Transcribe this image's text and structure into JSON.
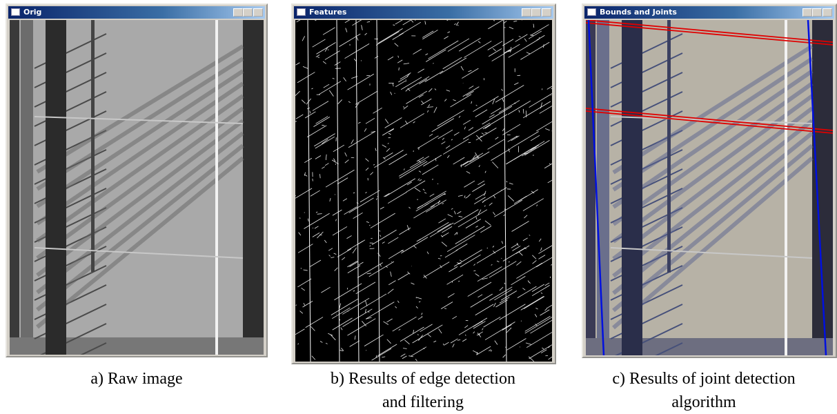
{
  "panels": [
    {
      "window_title": "Orig",
      "caption": [
        "a) Raw image"
      ]
    },
    {
      "window_title": "Features",
      "caption": [
        "b) Results of edge detection",
        "and filtering"
      ]
    },
    {
      "window_title": "Bounds and Joints",
      "caption": [
        "c) Results of joint detection",
        "algorithm"
      ]
    }
  ]
}
